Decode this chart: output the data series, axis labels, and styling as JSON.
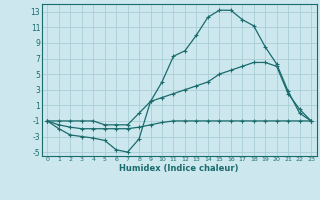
{
  "xlabel": "Humidex (Indice chaleur)",
  "bg_color": "#cce8ee",
  "grid_color": "#aacdd6",
  "line_color": "#1a6b6b",
  "xlim": [
    -0.5,
    23.5
  ],
  "ylim": [
    -5.5,
    14
  ],
  "xticks": [
    0,
    1,
    2,
    3,
    4,
    5,
    6,
    7,
    8,
    9,
    10,
    11,
    12,
    13,
    14,
    15,
    16,
    17,
    18,
    19,
    20,
    21,
    22,
    23
  ],
  "yticks": [
    -5,
    -3,
    -1,
    1,
    3,
    5,
    7,
    9,
    11,
    13
  ],
  "curve1_x": [
    0,
    1,
    2,
    3,
    4,
    5,
    6,
    7,
    8,
    9,
    10,
    11,
    12,
    13,
    14,
    15,
    16,
    17,
    18,
    19,
    20,
    21,
    22,
    23
  ],
  "curve1_y": [
    -1,
    -2,
    -2.8,
    -3,
    -3.2,
    -3.5,
    -4.7,
    -5,
    -3.3,
    1.5,
    4,
    7.3,
    8,
    10,
    12.3,
    13.2,
    13.2,
    12,
    11.2,
    8.5,
    6.3,
    2.8,
    0,
    -1
  ],
  "curve2_x": [
    0,
    1,
    2,
    3,
    4,
    5,
    6,
    7,
    8,
    9,
    10,
    11,
    12,
    13,
    14,
    15,
    16,
    17,
    18,
    19,
    20,
    21,
    22,
    23
  ],
  "curve2_y": [
    -1,
    -1,
    -1,
    -1,
    -1,
    -1.5,
    -1.5,
    -1.5,
    0,
    1.5,
    2,
    2.5,
    3,
    3.5,
    4,
    5,
    5.5,
    6,
    6.5,
    6.5,
    6,
    2.5,
    0.5,
    -1
  ],
  "curve3_x": [
    0,
    1,
    2,
    3,
    4,
    5,
    6,
    7,
    8,
    9,
    10,
    11,
    12,
    13,
    14,
    15,
    16,
    17,
    18,
    19,
    20,
    21,
    22,
    23
  ],
  "curve3_y": [
    -1,
    -1.5,
    -1.8,
    -2,
    -2,
    -2,
    -2,
    -2,
    -1.8,
    -1.5,
    -1.2,
    -1,
    -1,
    -1,
    -1,
    -1,
    -1,
    -1,
    -1,
    -1,
    -1,
    -1,
    -1,
    -1
  ]
}
